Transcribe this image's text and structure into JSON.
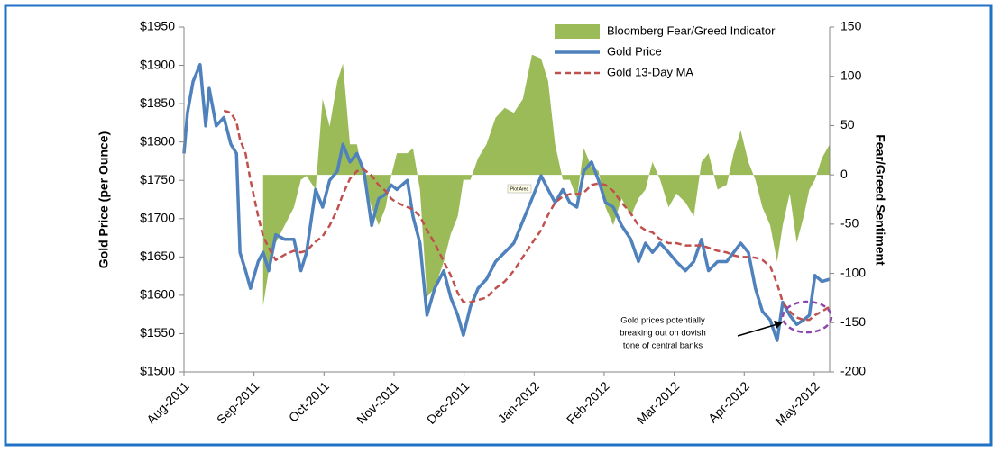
{
  "chart_data": {
    "type": "line",
    "ylabel": "Gold Price (per Ounce)",
    "y2label": "Fear/Greed Sentiment",
    "legend": "upper right",
    "xlim": [
      0,
      9.22
    ],
    "xticks": [
      {
        "value": 0,
        "label": "Aug-2011"
      },
      {
        "value": 1,
        "label": "Sep-2011"
      },
      {
        "value": 2,
        "label": "Oct-2011"
      },
      {
        "value": 3,
        "label": "Nov-2011"
      },
      {
        "value": 4,
        "label": "Dec-2011"
      },
      {
        "value": 5,
        "label": "Jan-2012"
      },
      {
        "value": 6,
        "label": "Feb-2012"
      },
      {
        "value": 7,
        "label": "Mar-2012"
      },
      {
        "value": 8,
        "label": "Apr-2012"
      },
      {
        "value": 9,
        "label": "May-2012"
      }
    ],
    "ylim": [
      1500,
      1950
    ],
    "yticks": [
      {
        "value": 1500,
        "label": "$1500"
      },
      {
        "value": 1550,
        "label": "$1550"
      },
      {
        "value": 1600,
        "label": "$1600"
      },
      {
        "value": 1650,
        "label": "$1650"
      },
      {
        "value": 1700,
        "label": "$1700"
      },
      {
        "value": 1750,
        "label": "$1750"
      },
      {
        "value": 1800,
        "label": "$1800"
      },
      {
        "value": 1850,
        "label": "$1850"
      },
      {
        "value": 1900,
        "label": "$1900"
      },
      {
        "value": 1950,
        "label": "$1950"
      }
    ],
    "y2lim": [
      -200,
      150
    ],
    "y2ticks": [
      150,
      100,
      50,
      0,
      -50,
      -100,
      -150,
      -200
    ],
    "x": [
      0,
      0.05,
      0.13,
      0.23,
      0.31,
      0.36,
      0.46,
      0.57,
      0.67,
      0.75,
      0.8,
      0.88,
      0.95,
      1.06,
      1.13,
      1.21,
      1.31,
      1.44,
      1.57,
      1.67,
      1.75,
      1.88,
      1.98,
      2.08,
      2.19,
      2.27,
      2.37,
      2.47,
      2.57,
      2.68,
      2.78,
      2.88,
      2.96,
      3.04,
      3.19,
      3.27,
      3.37,
      3.47,
      3.58,
      3.71,
      3.81,
      3.91,
      3.99,
      4.09,
      4.2,
      4.32,
      4.45,
      4.58,
      4.71,
      4.84,
      4.97,
      5.1,
      5.2,
      5.3,
      5.41,
      5.51,
      5.61,
      5.71,
      5.82,
      5.92,
      6.02,
      6.13,
      6.25,
      6.38,
      6.49,
      6.59,
      6.69,
      6.8,
      6.92,
      7.03,
      7.16,
      7.28,
      7.39,
      7.49,
      7.62,
      7.75,
      7.85,
      7.95,
      8.06,
      8.16,
      8.26,
      8.37,
      8.47,
      8.55,
      8.65,
      8.75,
      8.85,
      8.93,
      9.01,
      9.11,
      9.22
    ],
    "series": [
      {
        "name": "Bloomberg Fear/Greed Indicator",
        "type": "area",
        "axis": "y2",
        "color": "#9bbb59",
        "values": [
          null,
          null,
          null,
          null,
          null,
          null,
          null,
          null,
          null,
          null,
          null,
          null,
          null,
          null,
          -133,
          -97,
          -69,
          -51,
          -33,
          -5,
          -1,
          -15,
          77,
          49,
          95,
          113,
          31,
          31,
          -5,
          -33,
          -51,
          -33,
          -1,
          22,
          22,
          27,
          -15,
          -124,
          -115,
          -88,
          -60,
          -42,
          -5,
          -5,
          17,
          31,
          58,
          68,
          63,
          77,
          122,
          118,
          95,
          31,
          -5,
          -5,
          -24,
          27,
          8,
          4,
          -33,
          -51,
          -24,
          -42,
          -24,
          -15,
          13,
          -5,
          -33,
          -19,
          -28,
          -42,
          13,
          22,
          -15,
          -10,
          22,
          45,
          13,
          -5,
          -33,
          -51,
          -88,
          -51,
          -19,
          -69,
          -42,
          -15,
          -5,
          17,
          31
        ]
      },
      {
        "name": "Gold Price",
        "type": "line",
        "color": "#4f81bd",
        "values": [
          1785,
          1838,
          1879,
          1901,
          1821,
          1870,
          1821,
          1832,
          1797,
          1785,
          1656,
          1632,
          1609,
          1644,
          1656,
          1632,
          1679,
          1673,
          1673,
          1632,
          1656,
          1738,
          1715,
          1750,
          1762,
          1797,
          1774,
          1785,
          1762,
          1691,
          1726,
          1732,
          1744,
          1738,
          1750,
          1703,
          1668,
          1574,
          1609,
          1632,
          1597,
          1574,
          1548,
          1585,
          1609,
          1621,
          1644,
          1656,
          1668,
          1697,
          1726,
          1756,
          1738,
          1721,
          1738,
          1721,
          1715,
          1762,
          1774,
          1750,
          1721,
          1715,
          1691,
          1673,
          1644,
          1668,
          1656,
          1668,
          1656,
          1644,
          1632,
          1644,
          1673,
          1632,
          1644,
          1644,
          1656,
          1668,
          1656,
          1609,
          1579,
          1568,
          1541,
          1591,
          1574,
          1562,
          1568,
          1574,
          1626,
          1618,
          1621
        ]
      },
      {
        "name": "Gold 13-Day MA",
        "type": "line",
        "dashed": true,
        "color": "#c0504d",
        "values": [
          null,
          null,
          null,
          null,
          null,
          null,
          null,
          1841,
          1838,
          1826,
          1803,
          1785,
          1750,
          1703,
          1677,
          1662,
          1646,
          1653,
          1658,
          1656,
          1658,
          1670,
          1677,
          1691,
          1712,
          1732,
          1752,
          1762,
          1764,
          1756,
          1744,
          1736,
          1726,
          1721,
          1715,
          1712,
          1703,
          1685,
          1668,
          1644,
          1626,
          1603,
          1591,
          1591,
          1594,
          1597,
          1609,
          1618,
          1632,
          1650,
          1668,
          1685,
          1705,
          1721,
          1729,
          1732,
          1732,
          1734,
          1744,
          1746,
          1744,
          1736,
          1721,
          1707,
          1691,
          1685,
          1682,
          1673,
          1668,
          1668,
          1665,
          1665,
          1665,
          1662,
          1658,
          1656,
          1652,
          1650,
          1650,
          1649,
          1646,
          1638,
          1615,
          1591,
          1579,
          1571,
          1568,
          1568,
          1574,
          1579,
          1585
        ]
      }
    ],
    "annotation": {
      "lines": [
        "Gold prices potentially",
        "breaking out on dovish",
        "tone of central banks"
      ]
    },
    "tooltip": "Plot Area"
  }
}
